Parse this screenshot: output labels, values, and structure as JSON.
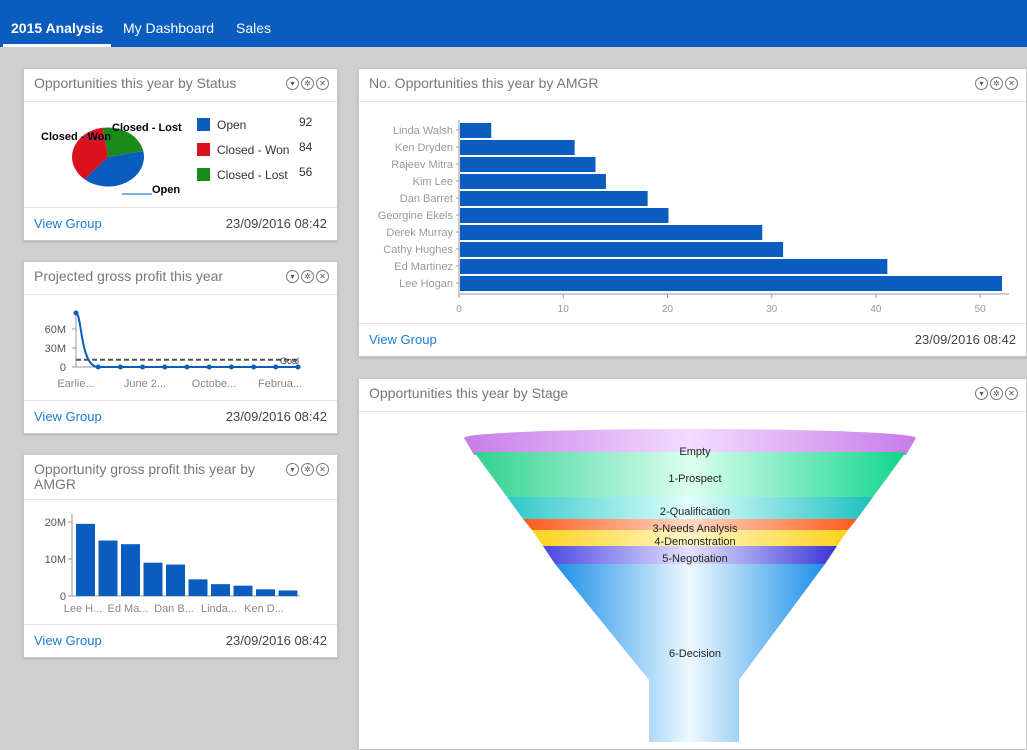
{
  "tabs": [
    {
      "label": "2015 Analysis",
      "active": true
    },
    {
      "label": "My Dashboard",
      "active": false
    },
    {
      "label": "Sales",
      "active": false
    }
  ],
  "panels": {
    "status": {
      "title": "Opportunities this year by Status",
      "view_group": "View Group",
      "timestamp": "23/09/2016 08:42",
      "legend": [
        {
          "label": "Open",
          "value": "92",
          "color": "#0a5cbf"
        },
        {
          "label": "Closed - Won",
          "value": "84",
          "color": "#d9121d"
        },
        {
          "label": "Closed - Lost",
          "value": "56",
          "color": "#1a8a1a"
        }
      ],
      "pie_labels": {
        "won": "Closed - Won",
        "lost": "Closed - Lost",
        "open": "Open"
      }
    },
    "projected": {
      "title": "Projected gross profit this year",
      "view_group": "View Group",
      "timestamp": "23/09/2016 08:42",
      "y_ticks": [
        "60M",
        "30M",
        "0"
      ],
      "x_ticks": [
        "Earlie...",
        "June 2...",
        "Octobe...",
        "Februa..."
      ],
      "goal_label": "Goal"
    },
    "gross": {
      "title": "Opportunity gross profit this year by AMGR",
      "view_group": "View Group",
      "timestamp": "23/09/2016 08:42",
      "y_ticks": [
        "20M",
        "10M",
        "0"
      ],
      "x_ticks": [
        "Lee H...",
        "Ed Ma...",
        "Dan B...",
        "Linda...",
        "Ken D..."
      ]
    },
    "amgr": {
      "title": "No. Opportunities this year by AMGR",
      "view_group": "View Group",
      "timestamp": "23/09/2016 08:42"
    },
    "stage": {
      "title": "Opportunities this year by Stage",
      "stages": [
        "Empty",
        "1-Prospect",
        "2-Qualification",
        "3-Needs Analysis",
        "4-Demonstration",
        "5-Negotiation",
        "6-Decision"
      ]
    }
  },
  "chart_data": [
    {
      "type": "pie",
      "categories": [
        "Open",
        "Closed - Won",
        "Closed - Lost"
      ],
      "values": [
        92,
        84,
        56
      ],
      "colors": [
        "#0a5cbf",
        "#d9121d",
        "#1a8a1a"
      ]
    },
    {
      "type": "line",
      "x": [
        "Earlie...",
        "",
        "",
        "June 2...",
        "",
        "",
        "Octobe...",
        "",
        "",
        "Februa...",
        ""
      ],
      "series": [
        {
          "values": [
            75,
            0,
            0,
            0,
            0,
            0,
            0,
            0,
            0,
            0,
            0
          ]
        },
        {
          "name": "Goal",
          "values": [
            10,
            10,
            10,
            10,
            10,
            10,
            10,
            10,
            10,
            10,
            10
          ]
        }
      ],
      "ylim": [
        0,
        75
      ],
      "unit": "M"
    },
    {
      "type": "bar",
      "categories": [
        "Lee H...",
        "",
        "Ed Ma...",
        "",
        "Dan B...",
        "",
        "Linda...",
        "",
        "Ken D...",
        ""
      ],
      "values": [
        19.5,
        15,
        14,
        9,
        8.5,
        4.5,
        3.2,
        2.8,
        1.8,
        1.5
      ],
      "ylim": [
        0,
        20
      ],
      "unit": "M"
    },
    {
      "type": "bar",
      "orientation": "horizontal",
      "categories": [
        "Linda Walsh",
        "Ken Dryden",
        "Rajeev Mitra",
        "Kim Lee",
        "Dan Barret",
        "Georgine Ekels",
        "Derek Murray",
        "Cathy Hughes",
        "Ed Martinez",
        "Lee Hogan"
      ],
      "values": [
        3,
        11,
        13,
        14,
        18,
        20,
        29,
        31,
        41,
        52
      ],
      "xlim": [
        0,
        52
      ],
      "x_ticks": [
        0,
        10,
        20,
        30,
        40,
        50
      ]
    }
  ]
}
